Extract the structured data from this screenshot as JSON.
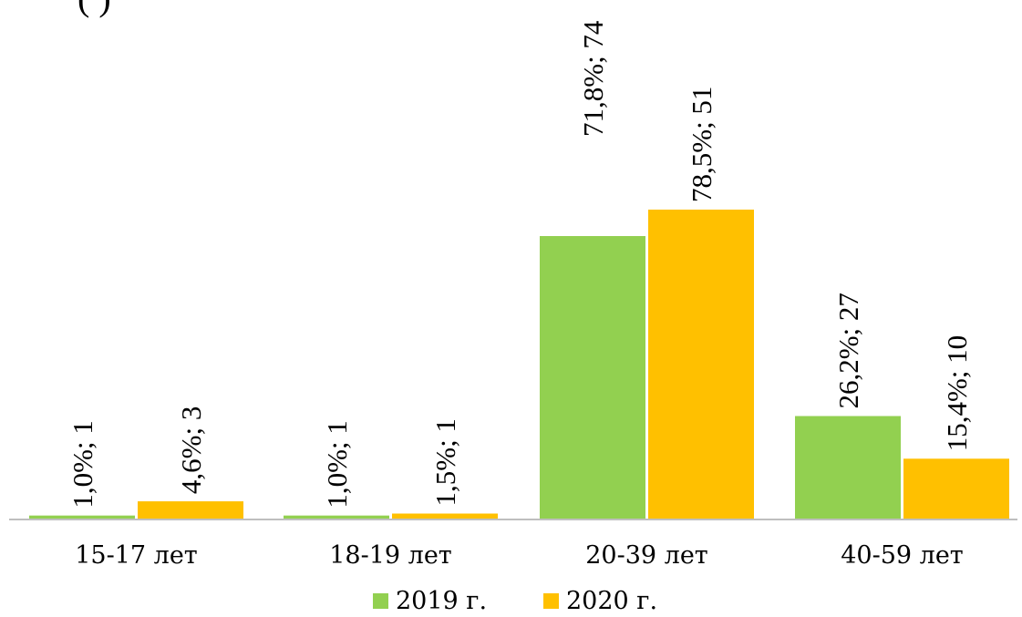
{
  "header": {
    "partial_text": "(              )"
  },
  "colors": {
    "series_2019": "#92D050",
    "series_2020": "#FFC000",
    "axis": "#BFBFBF"
  },
  "chart_data": {
    "type": "bar",
    "title": "",
    "xlabel": "",
    "ylabel": "",
    "ylim": [
      0,
      80
    ],
    "grid": false,
    "legend_position": "bottom",
    "categories": [
      "15-17 лет",
      "18-19 лет",
      "20-39 лет",
      "40-59 лет"
    ],
    "series": [
      {
        "name": "2019 г.",
        "color": "#92D050",
        "values": [
          1.0,
          1.0,
          71.8,
          26.2
        ],
        "counts": [
          1,
          1,
          74,
          27
        ],
        "labels": [
          "1,0%; 1",
          "1,0%; 1",
          "71,8%; 74",
          "26,2%; 27"
        ]
      },
      {
        "name": "2020 г.",
        "color": "#FFC000",
        "values": [
          4.6,
          1.5,
          78.5,
          15.4
        ],
        "counts": [
          3,
          1,
          51,
          10
        ],
        "labels": [
          "4,6%; 3",
          "1,5%; 1",
          "78,5%; 51",
          "15,4%; 10"
        ]
      }
    ]
  }
}
